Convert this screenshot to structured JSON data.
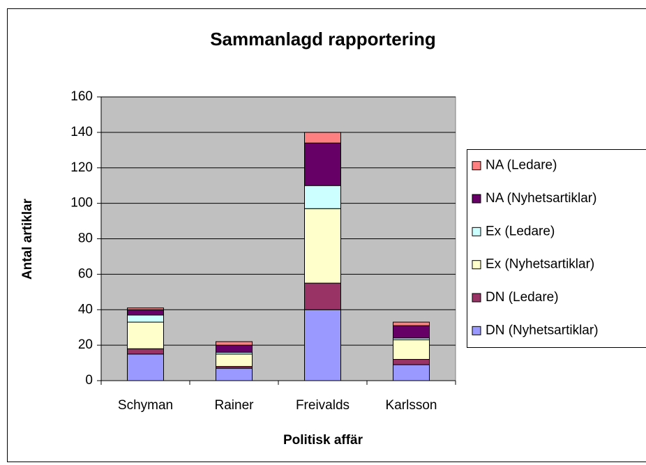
{
  "chart_data": {
    "type": "stacked_bar",
    "title": "Sammanlagd rapportering",
    "x_label": "Politisk affär",
    "y_label": "Antal artiklar",
    "categories": [
      "Schyman",
      "Rainer",
      "Freivalds",
      "Karlsson"
    ],
    "series": [
      {
        "name": "DN (Nyhetsartiklar)",
        "color": "#9999ff",
        "values": [
          15,
          7,
          40,
          9
        ]
      },
      {
        "name": "DN (Ledare)",
        "color": "#993366",
        "values": [
          3,
          1,
          15,
          3
        ]
      },
      {
        "name": "Ex (Nyhetsartiklar)",
        "color": "#ffffcc",
        "values": [
          15,
          7,
          42,
          11
        ]
      },
      {
        "name": "Ex (Ledare)",
        "color": "#ccffff",
        "values": [
          4,
          1,
          13,
          1
        ]
      },
      {
        "name": "NA (Nyhetsartiklar)",
        "color": "#660066",
        "values": [
          3,
          4,
          24,
          7
        ]
      },
      {
        "name": "NA (Ledare)",
        "color": "#ff8080",
        "values": [
          1,
          2,
          6,
          2
        ]
      }
    ],
    "ylim": [
      0,
      160
    ],
    "yticks": [
      0,
      20,
      40,
      60,
      80,
      100,
      120,
      140,
      160
    ],
    "grid": true,
    "legend": "right",
    "plot_background": "#c0c0c0"
  }
}
